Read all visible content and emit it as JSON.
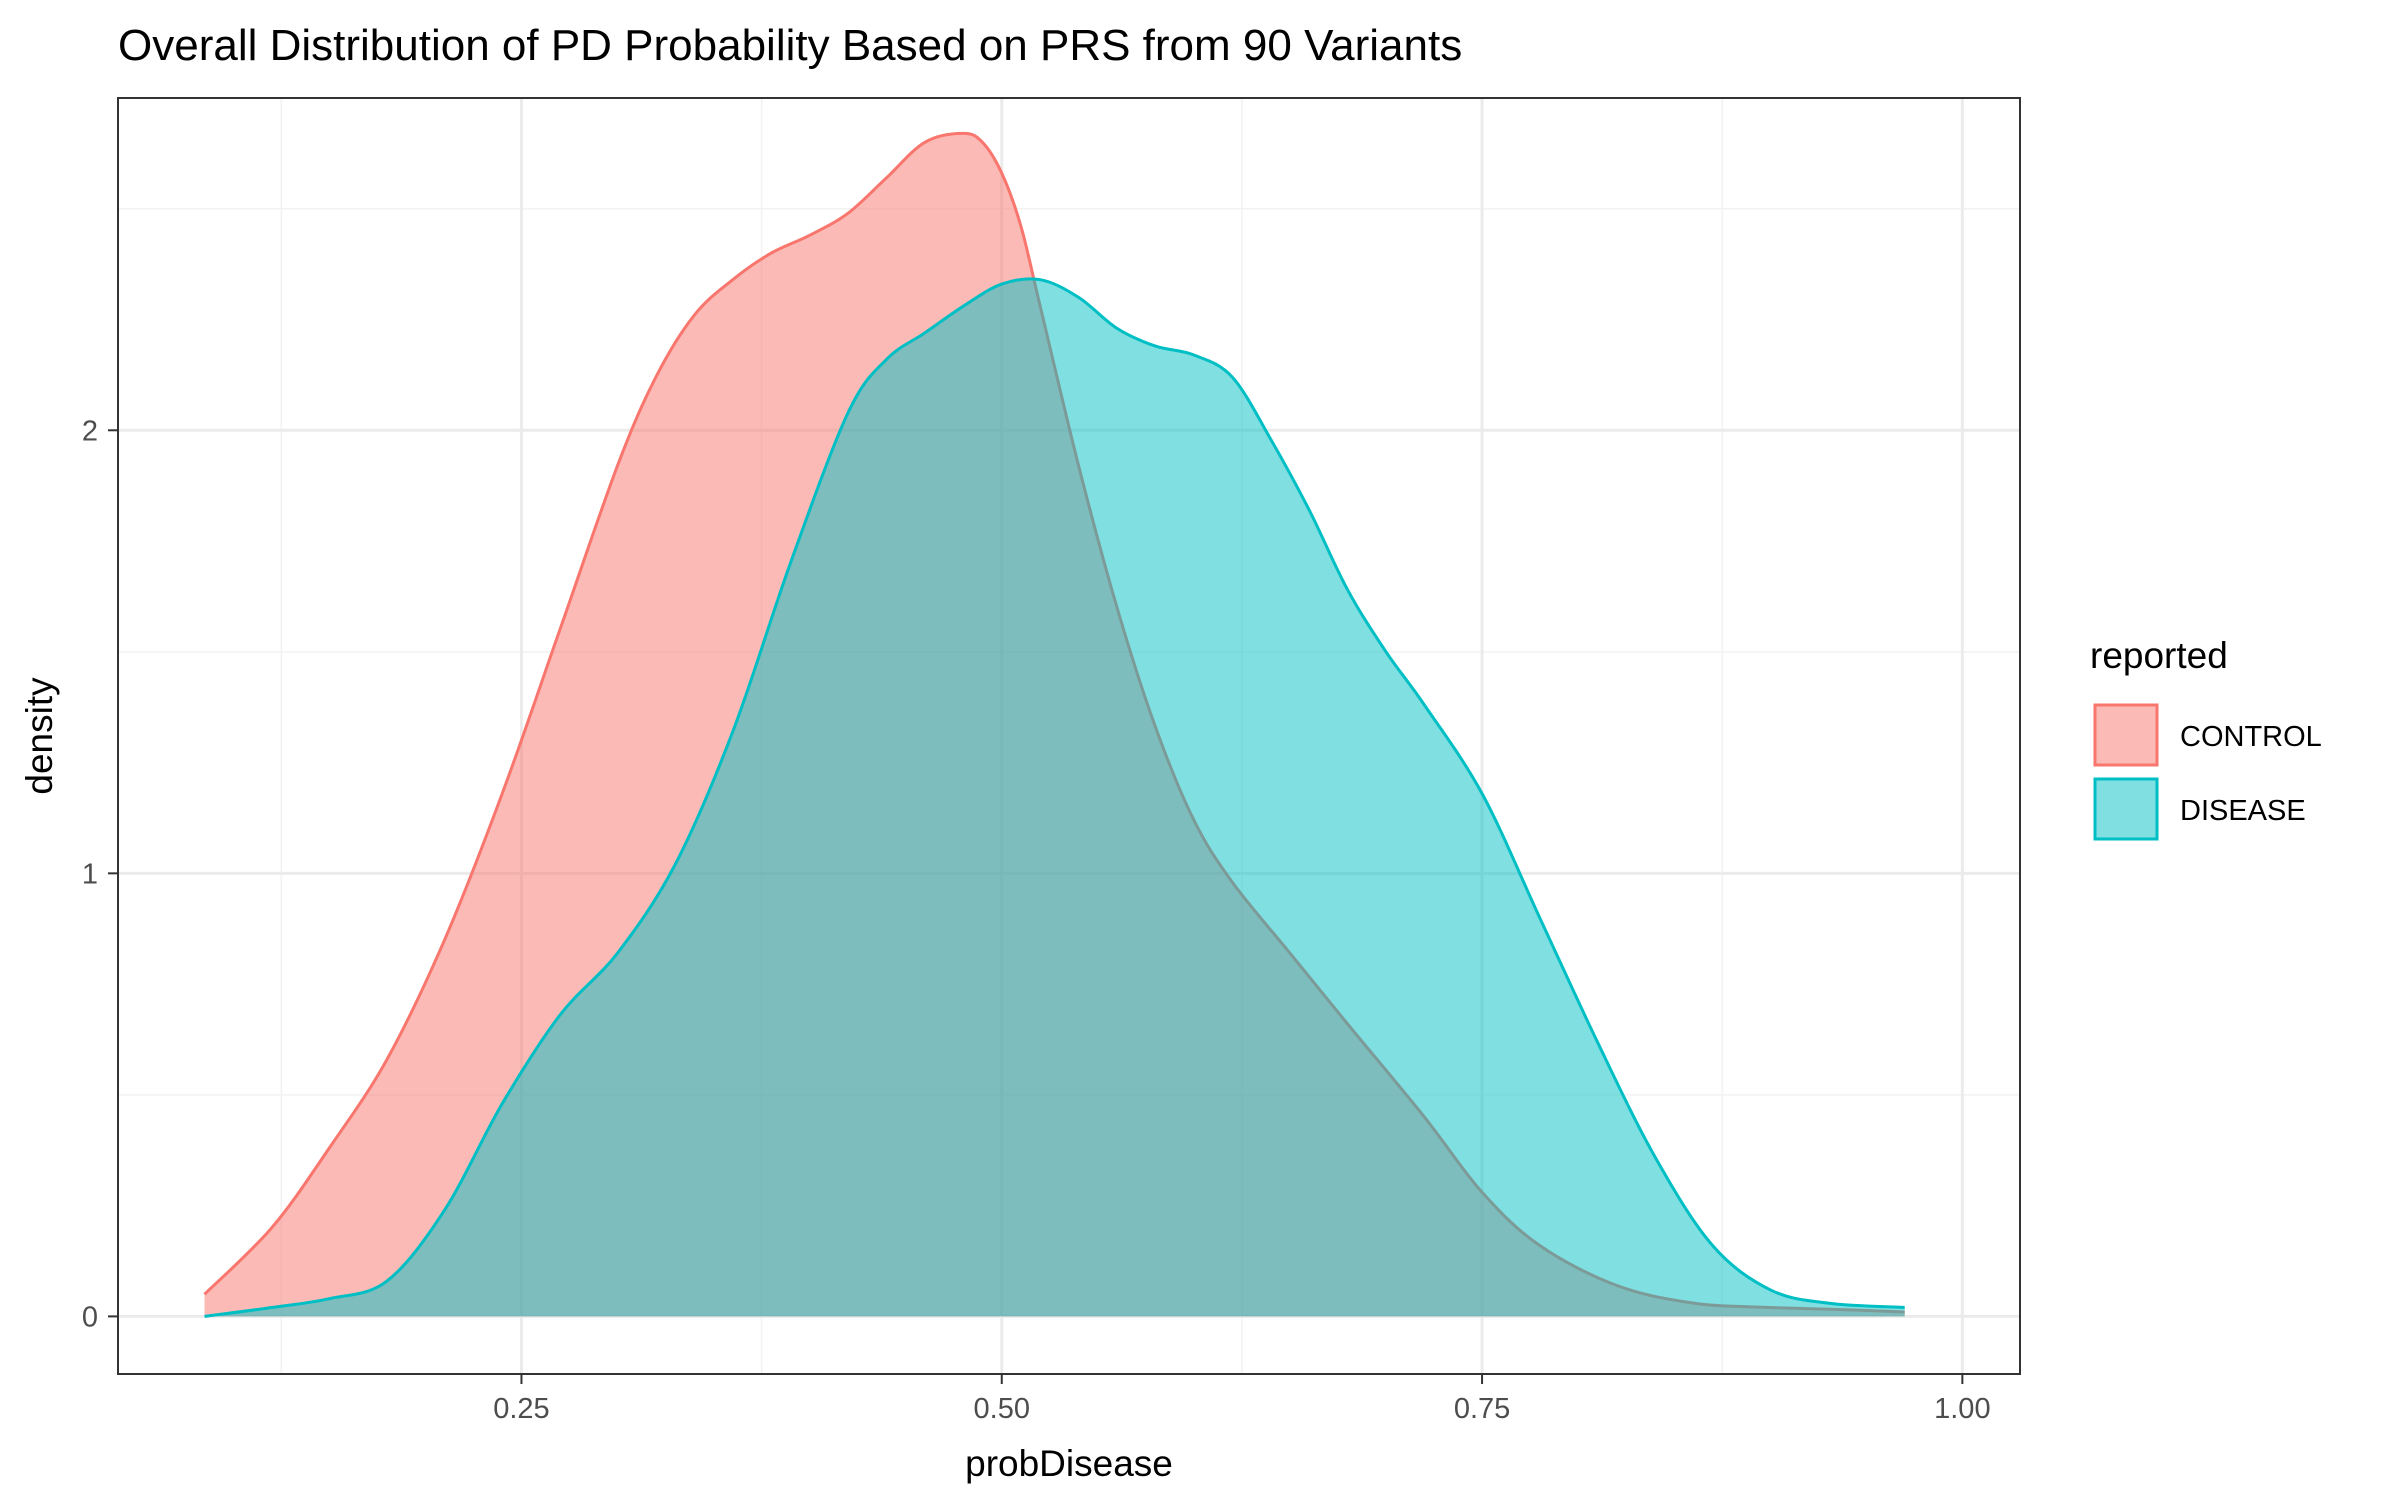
{
  "chart_data": {
    "type": "area",
    "title": "Overall Distribution of PD Probability Based on PRS from 90 Variants",
    "xlabel": "probDisease",
    "ylabel": "density",
    "xlim": [
      0.04,
      1.03
    ],
    "ylim": [
      -0.13,
      2.75
    ],
    "x_ticks": [
      0.25,
      0.5,
      0.75,
      1.0
    ],
    "x_tick_labels": [
      "0.25",
      "0.50",
      "0.75",
      "1.00"
    ],
    "y_ticks": [
      0,
      1,
      2
    ],
    "y_tick_labels": [
      "0",
      "1",
      "2"
    ],
    "grid": true,
    "legend": {
      "title": "reported",
      "position": "right"
    },
    "series": [
      {
        "name": "CONTROL",
        "line_color": "#F8766D",
        "fill_color": "#F8766D",
        "x": [
          0.085,
          0.12,
          0.15,
          0.18,
          0.21,
          0.24,
          0.27,
          0.3,
          0.32,
          0.34,
          0.36,
          0.38,
          0.4,
          0.42,
          0.44,
          0.46,
          0.48,
          0.49,
          0.5,
          0.51,
          0.52,
          0.54,
          0.56,
          0.58,
          0.6,
          0.62,
          0.65,
          0.68,
          0.72,
          0.75,
          0.78,
          0.82,
          0.86,
          0.9,
          0.94,
          0.97
        ],
        "y": [
          0.05,
          0.2,
          0.38,
          0.58,
          0.85,
          1.18,
          1.55,
          1.92,
          2.12,
          2.26,
          2.34,
          2.4,
          2.44,
          2.49,
          2.57,
          2.65,
          2.67,
          2.65,
          2.58,
          2.46,
          2.28,
          1.92,
          1.6,
          1.33,
          1.12,
          0.98,
          0.82,
          0.66,
          0.45,
          0.28,
          0.16,
          0.07,
          0.03,
          0.02,
          0.015,
          0.01
        ]
      },
      {
        "name": "DISEASE",
        "line_color": "#00BFC4",
        "fill_color": "#00BFC4",
        "x": [
          0.085,
          0.12,
          0.15,
          0.18,
          0.21,
          0.24,
          0.27,
          0.3,
          0.33,
          0.36,
          0.39,
          0.42,
          0.44,
          0.46,
          0.48,
          0.5,
          0.52,
          0.54,
          0.56,
          0.58,
          0.6,
          0.62,
          0.64,
          0.66,
          0.68,
          0.7,
          0.72,
          0.75,
          0.78,
          0.81,
          0.84,
          0.87,
          0.9,
          0.93,
          0.97
        ],
        "y": [
          0.0,
          0.02,
          0.04,
          0.08,
          0.24,
          0.48,
          0.68,
          0.82,
          1.02,
          1.32,
          1.7,
          2.04,
          2.16,
          2.22,
          2.28,
          2.33,
          2.34,
          2.3,
          2.23,
          2.19,
          2.17,
          2.12,
          1.98,
          1.82,
          1.64,
          1.5,
          1.38,
          1.18,
          0.9,
          0.62,
          0.36,
          0.16,
          0.06,
          0.03,
          0.02
        ]
      }
    ]
  }
}
